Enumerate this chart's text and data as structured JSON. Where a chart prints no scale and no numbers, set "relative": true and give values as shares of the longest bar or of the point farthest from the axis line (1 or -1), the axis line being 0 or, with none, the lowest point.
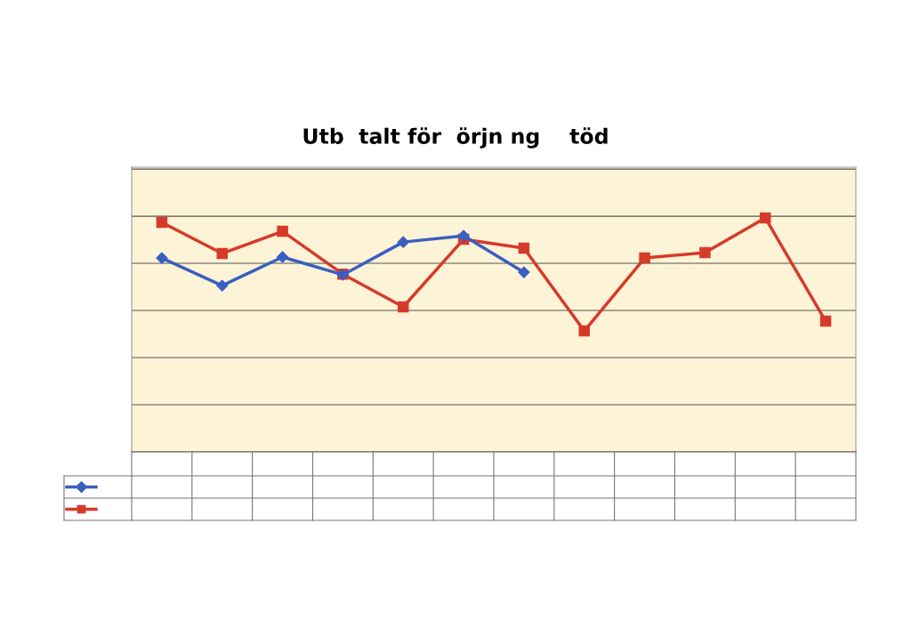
{
  "chart_data": {
    "type": "line",
    "title": "Utb  talt för  örjn ng    töd",
    "categories": [
      null,
      null,
      null,
      null,
      null,
      null,
      null,
      null,
      null,
      null,
      null,
      null
    ],
    "relative": true,
    "grid": "y",
    "legend": false,
    "series": [
      {
        "color": "#3a5fc0",
        "marker": "diamond",
        "values": [
          0.829,
          0.711,
          0.833,
          0.757,
          0.897,
          0.924,
          0.768,
          null,
          null,
          null,
          null,
          null
        ]
      },
      {
        "color": "#d63a2a",
        "marker": "square",
        "values": [
          0.981,
          0.848,
          0.943,
          0.76,
          0.62,
          0.909,
          0.871,
          0.517,
          0.829,
          0.852,
          1.0,
          0.559
        ]
      }
    ]
  }
}
